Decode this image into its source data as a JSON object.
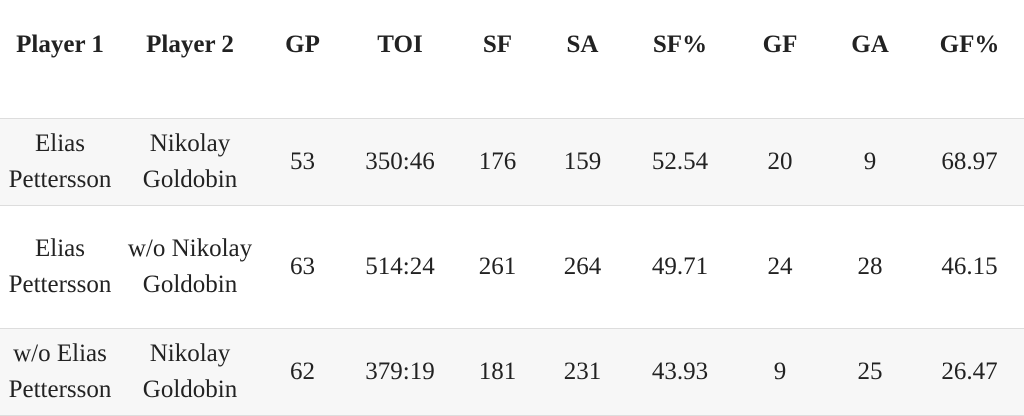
{
  "table": {
    "headers": [
      "Player 1",
      "Player 2",
      "GP",
      "TOI",
      "SF",
      "SA",
      "SF%",
      "GF",
      "GA",
      "GF%"
    ],
    "rows": [
      [
        "Elias Pettersson",
        "Nikolay Goldobin",
        "53",
        "350:46",
        "176",
        "159",
        "52.54",
        "20",
        "9",
        "68.97"
      ],
      [
        "Elias Pettersson",
        "w/o Nikolay Goldobin",
        "63",
        "514:24",
        "261",
        "264",
        "49.71",
        "24",
        "28",
        "46.15"
      ],
      [
        "w/o Elias Pettersson",
        "Nikolay Goldobin",
        "62",
        "379:19",
        "181",
        "231",
        "43.93",
        "9",
        "25",
        "26.47"
      ]
    ]
  }
}
